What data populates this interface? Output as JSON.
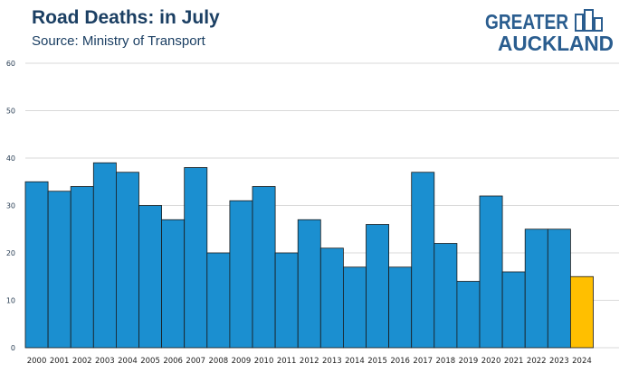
{
  "header": {
    "title": "Road Deaths: in July",
    "subtitle": "Source: Ministry of Transport"
  },
  "logo": {
    "line1": "GREATER",
    "line2": "AUCKLAND",
    "icon": "building-icon",
    "color": "#2a5d8f"
  },
  "chart_data": {
    "type": "bar",
    "title": "Road Deaths: in July",
    "subtitle": "Source: Ministry of Transport",
    "categories": [
      "2000",
      "2001",
      "2002",
      "2003",
      "2004",
      "2005",
      "2006",
      "2007",
      "2008",
      "2009",
      "2010",
      "2011",
      "2012",
      "2013",
      "2014",
      "2015",
      "2016",
      "2017",
      "2018",
      "2019",
      "2020",
      "2021",
      "2022",
      "2023",
      "2024"
    ],
    "values": [
      35,
      33,
      34,
      39,
      37,
      30,
      27,
      38,
      20,
      31,
      34,
      20,
      27,
      21,
      17,
      26,
      17,
      37,
      22,
      14,
      32,
      16,
      25,
      25,
      15
    ],
    "ylim": [
      0,
      60
    ],
    "yticks": [
      0,
      10,
      20,
      30,
      40,
      50,
      60
    ],
    "grid": true,
    "bar_color": "#1b8fd0",
    "highlight_color": "#ffbf00",
    "highlight_index": 24
  }
}
